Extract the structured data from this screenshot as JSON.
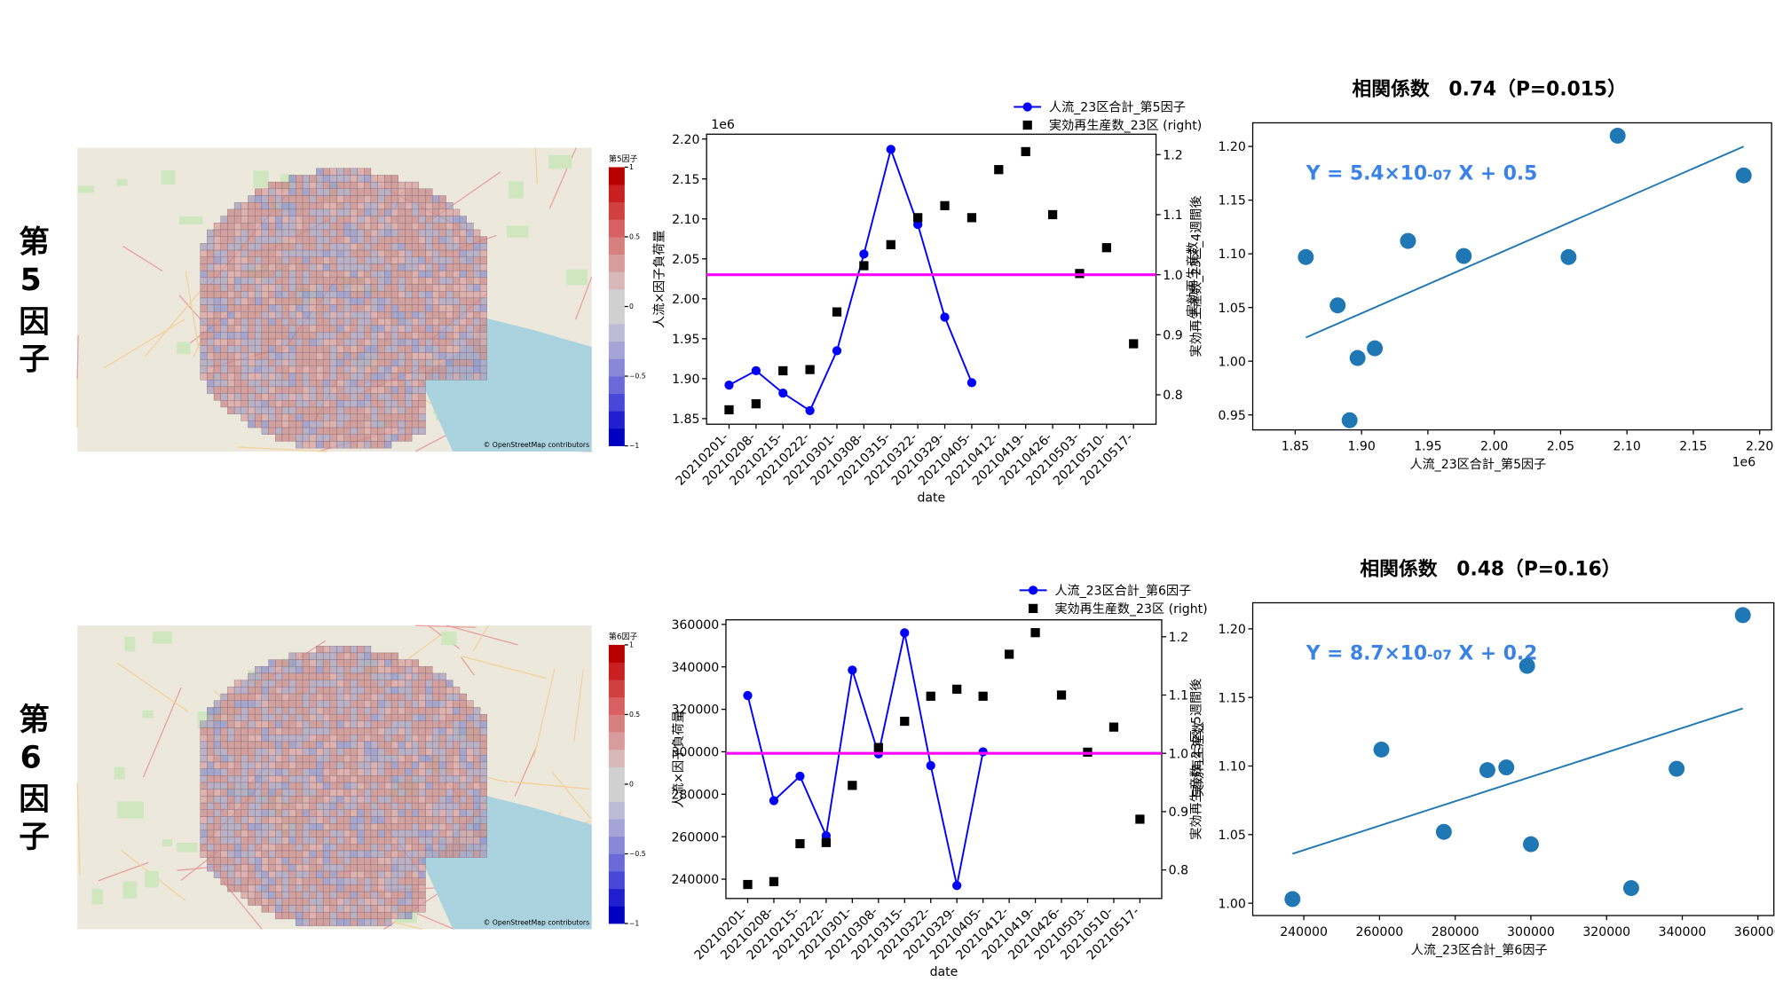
{
  "row_labels": [
    "第5因子",
    "第6因子"
  ],
  "maps": [
    {
      "colorbar_title": "第5因子",
      "colorbar_lim": [
        -1,
        1
      ],
      "colorbar_ticks": [
        1,
        0.5,
        0,
        {
          "value": -0.5,
          "label": "−0.5"
        },
        {
          "value": -1,
          "label": "−1"
        }
      ],
      "attribution": "© OpenStreetMap contributors"
    },
    {
      "colorbar_title": "第6因子",
      "colorbar_lim": [
        -1,
        1
      ],
      "colorbar_ticks": [
        1,
        0.5,
        0,
        {
          "value": -0.5,
          "label": "−0.5"
        },
        {
          "value": -1,
          "label": "−1"
        }
      ],
      "attribution": "© OpenStreetMap contributors"
    }
  ],
  "chart_data": [
    {
      "type": "line",
      "xlabel": "date",
      "ylabel": "人流×因子負荷量",
      "y2label": "実効再生産数",
      "y_offset_label": "1e6",
      "categories": [
        "20210201-",
        "20210208-",
        "20210215-",
        "20210222-",
        "20210301-",
        "20210308-",
        "20210315-",
        "20210322-",
        "20210329-",
        "20210405-",
        "20210412-",
        "20210419-",
        "20210426-",
        "20210503-",
        "20210510-",
        "20210517-"
      ],
      "ylim": [
        1.843,
        2.206
      ],
      "yticks": [
        1.85,
        {
          "value": 1.9,
          "label": "1.90"
        },
        1.95,
        {
          "value": 2.0,
          "label": "2.00"
        },
        2.05,
        {
          "value": 2.1,
          "label": "2.10"
        },
        2.15,
        {
          "value": 2.2,
          "label": "2.20"
        }
      ],
      "y2lim": [
        0.751,
        1.234
      ],
      "y2ticks": [
        0.8,
        0.9,
        {
          "value": 1.0,
          "label": "1.0"
        },
        1.1,
        1.2
      ],
      "series": [
        {
          "name": "人流_23区合計_第5因子",
          "color": "#0000ff",
          "marker": "circle",
          "values": [
            1.892,
            1.91,
            1.882,
            1.86,
            1.935,
            2.056,
            2.187,
            2.093,
            1.977,
            1.895,
            null,
            null,
            null,
            null,
            null,
            null
          ]
        },
        {
          "name": "実効再生産数_23区 (right)",
          "color": "#000000",
          "marker": "square",
          "linestyle": "none",
          "axis": "y2",
          "values": [
            0.775,
            0.785,
            0.84,
            0.842,
            0.938,
            1.015,
            1.05,
            1.095,
            1.115,
            1.095,
            1.175,
            1.205,
            1.1,
            1.002,
            1.045,
            0.885
          ]
        }
      ],
      "hline": {
        "value": 1.0,
        "axis": "y2",
        "color": "#ff00ff"
      }
    },
    {
      "type": "scatter",
      "title": "相関係数　0.74（P=0.015）",
      "equation": [
        "Y = 5.4×10",
        "-07",
        " X + 0.5"
      ],
      "xlabel": "人流_23区合計_第5因子",
      "x_offset_label": "1e6",
      "ylabel": "実効再生産数_23区_4週間後",
      "xlim": [
        1.818,
        2.209
      ],
      "xticks": [
        1.85,
        {
          "value": 1.9,
          "label": "1.90"
        },
        1.95,
        {
          "value": 2.0,
          "label": "2.00"
        },
        2.05,
        {
          "value": 2.1,
          "label": "2.10"
        },
        2.15,
        {
          "value": 2.2,
          "label": "2.20"
        }
      ],
      "ylim": [
        0.936,
        1.222
      ],
      "yticks": [
        0.95,
        {
          "value": 1.0,
          "label": "1.00"
        },
        1.05,
        {
          "value": 1.1,
          "label": "1.10"
        },
        1.15,
        {
          "value": 1.2,
          "label": "1.20"
        }
      ],
      "color": "#1f77b4",
      "x": [
        1.858,
        1.882,
        1.891,
        1.897,
        1.91,
        1.935,
        1.977,
        2.056,
        2.093,
        2.188
      ],
      "values": [
        1.097,
        1.052,
        0.945,
        1.003,
        1.012,
        1.112,
        1.098,
        1.097,
        1.21,
        1.173
      ],
      "fit": {
        "x": [
          1.858,
          2.188
        ],
        "values": [
          1.022,
          1.2
        ]
      }
    },
    {
      "type": "line",
      "xlabel": "date",
      "ylabel": "人流×因子負荷量",
      "y2label": "実効再生産数",
      "categories": [
        "20210201-",
        "20210208-",
        "20210215-",
        "20210222-",
        "20210301-",
        "20210308-",
        "20210315-",
        "20210322-",
        "20210329-",
        "20210405-",
        "20210412-",
        "20210419-",
        "20210426-",
        "20210503-",
        "20210510-",
        "20210517-"
      ],
      "ylim": [
        230900,
        362150
      ],
      "yticks": [
        240000,
        260000,
        280000,
        300000,
        320000,
        340000,
        360000
      ],
      "y2lim": [
        0.751,
        1.229
      ],
      "y2ticks": [
        0.8,
        0.9,
        {
          "value": 1.0,
          "label": "1.0"
        },
        1.1,
        1.2
      ],
      "series": [
        {
          "name": "人流_23区合計_第6因子",
          "color": "#0000ff",
          "marker": "circle",
          "values": [
            326500,
            277000,
            288500,
            260500,
            338500,
            299000,
            356000,
            293500,
            237000,
            300000,
            null,
            null,
            null,
            null,
            null,
            null
          ]
        },
        {
          "name": "実効再生産数_23区 (right)",
          "color": "#000000",
          "marker": "square",
          "linestyle": "none",
          "axis": "y2",
          "values": [
            0.775,
            0.78,
            0.845,
            0.847,
            0.945,
            1.01,
            1.055,
            1.098,
            1.11,
            1.098,
            1.17,
            1.207,
            1.1,
            1.002,
            1.045,
            0.887
          ]
        }
      ],
      "hline": {
        "value": 1.0,
        "axis": "y2",
        "color": "#ff00ff"
      }
    },
    {
      "type": "scatter",
      "title": "相関係数　0.48（P=0.16）",
      "equation": [
        "Y = 8.7×10",
        "-07",
        " X + 0.2"
      ],
      "xlabel": "人流_23区合計_第6因子",
      "ylabel": "実効再生産数_23区_5週間後",
      "xlim": [
        226500,
        364200
      ],
      "xticks": [
        240000,
        260000,
        280000,
        300000,
        320000,
        340000,
        360000
      ],
      "ylim": [
        0.991,
        1.219
      ],
      "yticks": [
        {
          "value": 1.0,
          "label": "1.00"
        },
        1.05,
        {
          "value": 1.1,
          "label": "1.10"
        },
        1.15,
        {
          "value": 1.2,
          "label": "1.20"
        }
      ],
      "color": "#1f77b4",
      "x": [
        237000,
        260500,
        277000,
        288500,
        293500,
        299000,
        300000,
        326500,
        338500,
        356000
      ],
      "values": [
        1.003,
        1.112,
        1.052,
        1.097,
        1.099,
        1.173,
        1.043,
        1.011,
        1.098,
        1.21
      ],
      "fit": {
        "x": [
          237000,
          356000
        ],
        "values": [
          1.036,
          1.142
        ]
      }
    }
  ]
}
